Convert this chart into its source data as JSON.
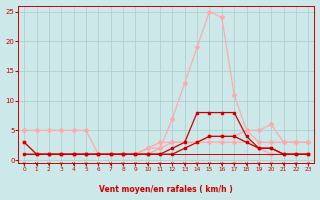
{
  "x": [
    0,
    1,
    2,
    3,
    4,
    5,
    6,
    7,
    8,
    9,
    10,
    11,
    12,
    13,
    14,
    15,
    16,
    17,
    18,
    19,
    20,
    21,
    22,
    23
  ],
  "line_pink_peak": [
    3,
    1,
    1,
    1,
    1,
    1,
    1,
    1,
    1,
    1,
    2,
    2,
    7,
    13,
    19,
    25,
    24,
    11,
    5,
    3,
    3,
    3,
    3,
    3
  ],
  "line_pink_flat_high": [
    5,
    5,
    5,
    5,
    5,
    5,
    1,
    1,
    1,
    1,
    1,
    2,
    3,
    3,
    3,
    3,
    3,
    3,
    3,
    2,
    1,
    1,
    1,
    1
  ],
  "line_pink_ramp": [
    3,
    1,
    1,
    1,
    1,
    1,
    1,
    1,
    1,
    1,
    2,
    3,
    3,
    3,
    3,
    4,
    4,
    4,
    5,
    5,
    6,
    3,
    3,
    3
  ],
  "line_red_bump": [
    1,
    1,
    1,
    1,
    1,
    1,
    1,
    1,
    1,
    1,
    1,
    1,
    2,
    3,
    8,
    8,
    8,
    8,
    4,
    2,
    2,
    1,
    1,
    1
  ],
  "line_red_mid": [
    3,
    1,
    1,
    1,
    1,
    1,
    1,
    1,
    1,
    1,
    1,
    1,
    1,
    2,
    3,
    4,
    4,
    4,
    3,
    2,
    2,
    1,
    1,
    1
  ],
  "line_red_flat": [
    1,
    1,
    1,
    1,
    1,
    1,
    1,
    1,
    1,
    1,
    1,
    1,
    1,
    1,
    1,
    1,
    1,
    1,
    1,
    1,
    1,
    1,
    1,
    1
  ],
  "ylim": [
    -0.5,
    26
  ],
  "xlim": [
    -0.5,
    23.5
  ],
  "yticks": [
    0,
    5,
    10,
    15,
    20,
    25
  ],
  "xticks": [
    0,
    1,
    2,
    3,
    4,
    5,
    6,
    7,
    8,
    9,
    10,
    11,
    12,
    13,
    14,
    15,
    16,
    17,
    18,
    19,
    20,
    21,
    22,
    23
  ],
  "xlabel": "Vent moyen/en rafales ( km/h )",
  "bg_color": "#cce8e8",
  "grid_color": "#aacccc",
  "pink_color": "#ffaaaa",
  "red_color": "#cc0000",
  "spine_color": "#cc0000"
}
